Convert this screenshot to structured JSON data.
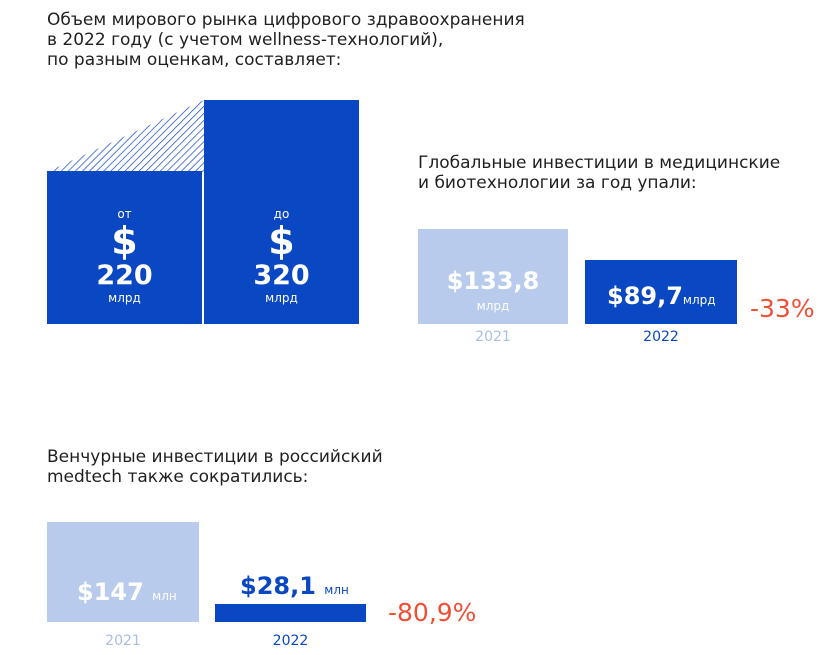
{
  "chart_data": [
    {
      "type": "bar",
      "title": "Объем мирового рынка цифрового здравоохранения в 2022 году (с учетом wellness-технологий), по разным оценкам, составляет:",
      "title_lines": [
        "Объем мирового рынка цифрового здравоохранения",
        "в 2022 году (с учетом wellness-технологий),",
        "по разным оценкам, составляет:"
      ],
      "categories": [
        "от",
        "до"
      ],
      "values": [
        220,
        320
      ],
      "currency": "$",
      "unit": "млрд"
    },
    {
      "type": "bar",
      "title": "Глобальные инвестиции в медицинские и биотехнологии за год упали:",
      "title_lines": [
        "Глобальные инвестиции в медицинские",
        "и биотехнологии за год упали:"
      ],
      "categories": [
        "2021",
        "2022"
      ],
      "values": [
        133.8,
        89.7
      ],
      "value_labels": [
        "$133,8",
        "$89,7"
      ],
      "unit": "млрд",
      "change": "-33%"
    },
    {
      "type": "bar",
      "title": "Венчурные инвестиции в российский medtech также сократились:",
      "title_lines": [
        "Венчурные инвестиции в российский",
        "medtech также сократились:"
      ],
      "categories": [
        "2021",
        "2022"
      ],
      "values": [
        147,
        28.1
      ],
      "value_labels": [
        "$147",
        "$28,1"
      ],
      "unit": "млн",
      "change": "-80,9%"
    }
  ],
  "colors": {
    "dark": "#0a47c2",
    "light": "#b9cbec",
    "negative": "#f04e36",
    "year_light": "#a9bde3"
  }
}
